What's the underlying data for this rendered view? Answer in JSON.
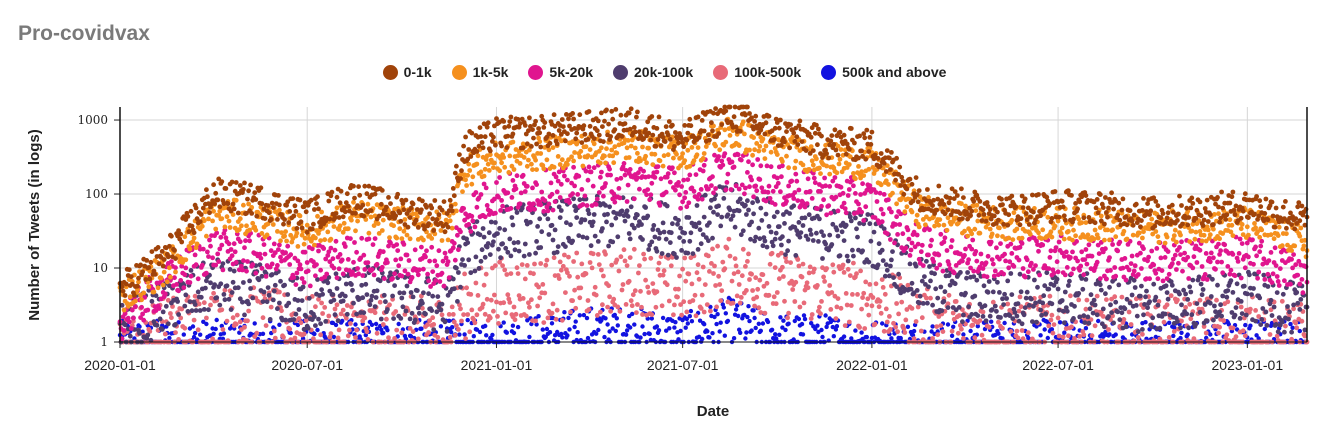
{
  "chart_data": {
    "type": "scatter",
    "title": "Pro-covidvax",
    "xlabel": "Date",
    "ylabel": "Number of Tweets (in logs)",
    "y_scale": "log",
    "ylim": [
      1,
      1500
    ],
    "xlim": [
      "2020-01-01",
      "2023-02-28"
    ],
    "y_ticks": [
      1,
      10,
      100,
      1000
    ],
    "y_tick_labels": [
      "1",
      "10",
      "100",
      "1000"
    ],
    "x_ticks": [
      "2020-01-01",
      "2020-07-01",
      "2021-01-01",
      "2021-07-01",
      "2022-01-01",
      "2022-07-01",
      "2023-01-01"
    ],
    "grid": true,
    "legend_position": "top-center",
    "series": [
      {
        "name": "0-1k",
        "color": "#a0430a",
        "x": [
          "2020-01-01",
          "2020-02-15",
          "2020-04-01",
          "2020-05-15",
          "2020-07-01",
          "2020-08-15",
          "2020-10-01",
          "2020-11-15",
          "2020-11-30",
          "2021-01-01",
          "2021-02-15",
          "2021-04-01",
          "2021-05-15",
          "2021-07-01",
          "2021-08-15",
          "2021-10-01",
          "2021-11-15",
          "2022-01-01",
          "2022-02-15",
          "2022-04-01",
          "2022-05-15",
          "2022-07-01",
          "2022-08-15",
          "2022-10-01",
          "2022-11-15",
          "2023-01-01",
          "2023-02-28"
        ],
        "values": [
          5,
          15,
          100,
          80,
          50,
          90,
          60,
          50,
          400,
          650,
          700,
          800,
          900,
          550,
          1200,
          700,
          500,
          450,
          100,
          70,
          60,
          70,
          65,
          55,
          60,
          70,
          45
        ]
      },
      {
        "name": "1k-5k",
        "color": "#f5901e",
        "x": [
          "2020-01-01",
          "2020-02-15",
          "2020-04-01",
          "2020-05-15",
          "2020-07-01",
          "2020-08-15",
          "2020-10-01",
          "2020-11-15",
          "2020-11-30",
          "2021-01-01",
          "2021-02-15",
          "2021-04-01",
          "2021-05-15",
          "2021-07-01",
          "2021-08-15",
          "2021-10-01",
          "2021-11-15",
          "2022-01-01",
          "2022-02-15",
          "2022-04-01",
          "2022-05-15",
          "2022-07-01",
          "2022-08-15",
          "2022-10-01",
          "2022-11-15",
          "2023-01-01",
          "2023-02-28"
        ],
        "values": [
          4,
          10,
          55,
          45,
          30,
          50,
          40,
          35,
          200,
          300,
          350,
          400,
          450,
          350,
          700,
          400,
          300,
          250,
          60,
          45,
          40,
          40,
          38,
          35,
          38,
          40,
          22
        ]
      },
      {
        "name": "5k-20k",
        "color": "#e0158f",
        "x": [
          "2020-01-01",
          "2020-02-15",
          "2020-04-01",
          "2020-05-15",
          "2020-07-01",
          "2020-08-15",
          "2020-10-01",
          "2020-11-15",
          "2020-11-30",
          "2021-01-01",
          "2021-02-15",
          "2021-04-01",
          "2021-05-15",
          "2021-07-01",
          "2021-08-15",
          "2021-10-01",
          "2021-11-15",
          "2022-01-01",
          "2022-02-15",
          "2022-04-01",
          "2022-05-15",
          "2022-07-01",
          "2022-08-15",
          "2022-10-01",
          "2022-11-15",
          "2023-01-01",
          "2023-02-28"
        ],
        "values": [
          2,
          6,
          18,
          15,
          10,
          15,
          12,
          10,
          50,
          100,
          110,
          130,
          150,
          120,
          220,
          130,
          100,
          80,
          20,
          15,
          14,
          15,
          13,
          12,
          13,
          14,
          8
        ]
      },
      {
        "name": "20k-100k",
        "color": "#4f3d6e",
        "x": [
          "2020-01-01",
          "2020-02-15",
          "2020-04-01",
          "2020-05-15",
          "2020-07-01",
          "2020-08-15",
          "2020-10-01",
          "2020-11-15",
          "2020-11-30",
          "2021-01-01",
          "2021-02-15",
          "2021-04-01",
          "2021-05-15",
          "2021-07-01",
          "2021-08-15",
          "2021-10-01",
          "2021-11-15",
          "2022-01-01",
          "2022-02-15",
          "2022-04-01",
          "2022-05-15",
          "2022-07-01",
          "2022-08-15",
          "2022-10-01",
          "2022-11-15",
          "2023-01-01",
          "2023-02-28"
        ],
        "values": [
          1.5,
          3,
          6,
          5,
          3,
          5,
          4,
          3,
          15,
          30,
          35,
          40,
          45,
          30,
          65,
          35,
          30,
          25,
          6,
          4,
          4,
          4,
          3.5,
          3,
          3.5,
          4,
          2.5
        ]
      },
      {
        "name": "100k-500k",
        "color": "#e86a78",
        "x": [
          "2020-01-01",
          "2020-02-15",
          "2020-04-01",
          "2020-05-15",
          "2020-07-01",
          "2020-08-15",
          "2020-10-01",
          "2020-11-15",
          "2020-11-30",
          "2021-01-01",
          "2021-02-15",
          "2021-04-01",
          "2021-05-15",
          "2021-07-01",
          "2021-08-15",
          "2021-10-01",
          "2021-11-15",
          "2022-01-01",
          "2022-02-15",
          "2022-04-01",
          "2022-05-15",
          "2022-07-01",
          "2022-08-15",
          "2022-10-01",
          "2022-11-15",
          "2023-01-01",
          "2023-02-28"
        ],
        "values": [
          1,
          1.5,
          2,
          2,
          1.5,
          1.5,
          1.5,
          1.5,
          3,
          5,
          5,
          6,
          7,
          5,
          9,
          6,
          5,
          4,
          2,
          1.5,
          1.5,
          1.5,
          1.5,
          1.5,
          1.5,
          1.5,
          1.2
        ]
      },
      {
        "name": "500k and above",
        "color": "#1212e0",
        "x": [
          "2020-01-01",
          "2020-02-15",
          "2020-04-01",
          "2020-05-15",
          "2020-07-01",
          "2020-08-15",
          "2020-10-01",
          "2020-11-15",
          "2020-11-30",
          "2021-01-01",
          "2021-02-15",
          "2021-04-01",
          "2021-05-15",
          "2021-07-01",
          "2021-08-15",
          "2021-10-01",
          "2021-11-15",
          "2022-01-01",
          "2022-02-15",
          "2022-04-01",
          "2022-05-15",
          "2022-07-01",
          "2022-08-15",
          "2022-10-01",
          "2022-11-15",
          "2023-01-01",
          "2023-02-28"
        ],
        "values": [
          1,
          1,
          1,
          1,
          1,
          1,
          1,
          1,
          1,
          1,
          1.2,
          1.5,
          1.5,
          1.2,
          2,
          1.2,
          1.2,
          1,
          1,
          1,
          1,
          1,
          1,
          1,
          1,
          1,
          1
        ]
      }
    ]
  }
}
